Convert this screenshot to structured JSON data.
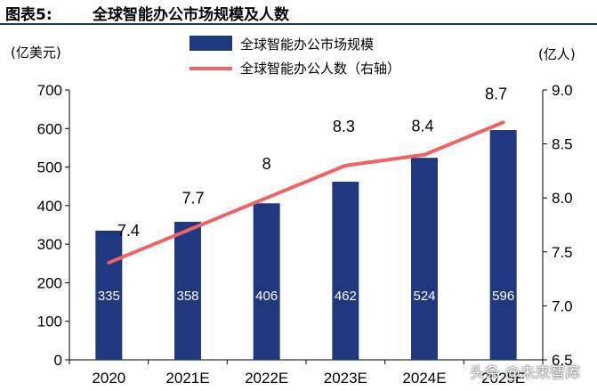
{
  "figure": {
    "label": "图表5:",
    "title": "全球智能办公市场规模及人数"
  },
  "watermark": "头条 @未来智库",
  "colors": {
    "bar": "#1f3880",
    "line": "#ef6363",
    "bar_label": "#ffffff",
    "text": "#000000"
  },
  "chart_data": {
    "type": "bar+line",
    "categories": [
      "2020",
      "2021E",
      "2022E",
      "2023E",
      "2024E",
      "2025E"
    ],
    "series": [
      {
        "name": "全球智能办公市场规模",
        "type": "bar",
        "axis": "left",
        "values": [
          335,
          358,
          406,
          462,
          524,
          596
        ],
        "labels": [
          "335",
          "358",
          "406",
          "462",
          "524",
          "596"
        ]
      },
      {
        "name": "全球智能办公人数（右轴）",
        "type": "line",
        "axis": "right",
        "values": [
          7.4,
          7.7,
          8.0,
          8.3,
          8.4,
          8.7
        ],
        "labels": [
          "7.4",
          "7.7",
          "8",
          "8.3",
          "8.4",
          "8.7"
        ]
      }
    ],
    "left_axis": {
      "unit": "(亿美元)",
      "min": 0,
      "max": 700,
      "ticks": [
        "0",
        "100",
        "200",
        "300",
        "400",
        "500",
        "600",
        "700"
      ]
    },
    "right_axis": {
      "unit": "(亿人)",
      "min": 6.5,
      "max": 9.0,
      "ticks": [
        "6.5",
        "7.0",
        "7.5",
        "8.0",
        "8.5",
        "9.0"
      ]
    },
    "legend_position": "top-center",
    "grid": false
  }
}
